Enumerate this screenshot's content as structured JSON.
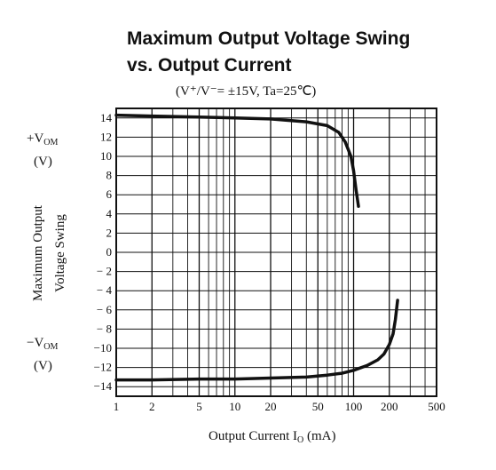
{
  "chart_data": {
    "type": "line",
    "title_line1": "Maximum Output Voltage Swing",
    "title_line2": "vs. Output Current",
    "conditions": "(V⁺/V⁻= ±15V,  Ta=25℃)",
    "xlabel": "Output Current  I",
    "xlabel_sub": "O",
    "xlabel_unit": "  (mA)",
    "ylabel_line1": "Maximum Output",
    "ylabel_line2": "Voltage Swing",
    "pos_label": "+V",
    "neg_label": "−V",
    "label_sub": "OM",
    "pos_unit": "(V)",
    "neg_unit": "(V)",
    "x_scale": "log",
    "xlim": [
      1,
      500
    ],
    "ylim": [
      -15,
      15
    ],
    "grid": true,
    "x_ticks": [
      {
        "value": 1,
        "label": "1"
      },
      {
        "value": 2,
        "label": "2"
      },
      {
        "value": 5,
        "label": "5"
      },
      {
        "value": 10,
        "label": "10"
      },
      {
        "value": 20,
        "label": "20"
      },
      {
        "value": 50,
        "label": "50"
      },
      {
        "value": 100,
        "label": "100"
      },
      {
        "value": 200,
        "label": "200"
      },
      {
        "value": 500,
        "label": "500"
      }
    ],
    "y_ticks": [
      {
        "value": 14,
        "label": "14"
      },
      {
        "value": 12,
        "label": "12"
      },
      {
        "value": 10,
        "label": "10"
      },
      {
        "value": 8,
        "label": "8"
      },
      {
        "value": 6,
        "label": "6"
      },
      {
        "value": 4,
        "label": "4"
      },
      {
        "value": 2,
        "label": "2"
      },
      {
        "value": 0,
        "label": "0"
      },
      {
        "value": -2,
        "label": "− 2"
      },
      {
        "value": -4,
        "label": "− 4"
      },
      {
        "value": -6,
        "label": "− 6"
      },
      {
        "value": -8,
        "label": "− 8"
      },
      {
        "value": -10,
        "label": "−10"
      },
      {
        "value": -12,
        "label": "−12"
      },
      {
        "value": -14,
        "label": "−14"
      }
    ],
    "series": [
      {
        "id": "positive-swing",
        "x": [
          1,
          2,
          5,
          10,
          20,
          40,
          60,
          75,
          85,
          95,
          100,
          105,
          110
        ],
        "y": [
          14.3,
          14.2,
          14.1,
          14.0,
          13.9,
          13.6,
          13.2,
          12.5,
          11.5,
          10.0,
          8.5,
          6.5,
          4.8
        ]
      },
      {
        "id": "negative-swing",
        "x": [
          1,
          2,
          5,
          10,
          20,
          40,
          60,
          80,
          100,
          130,
          160,
          180,
          200,
          215,
          225,
          235
        ],
        "y": [
          -13.3,
          -13.3,
          -13.2,
          -13.2,
          -13.1,
          -13.0,
          -12.8,
          -12.6,
          -12.3,
          -11.8,
          -11.2,
          -10.6,
          -9.6,
          -8.5,
          -7.0,
          -5.0
        ]
      }
    ]
  }
}
